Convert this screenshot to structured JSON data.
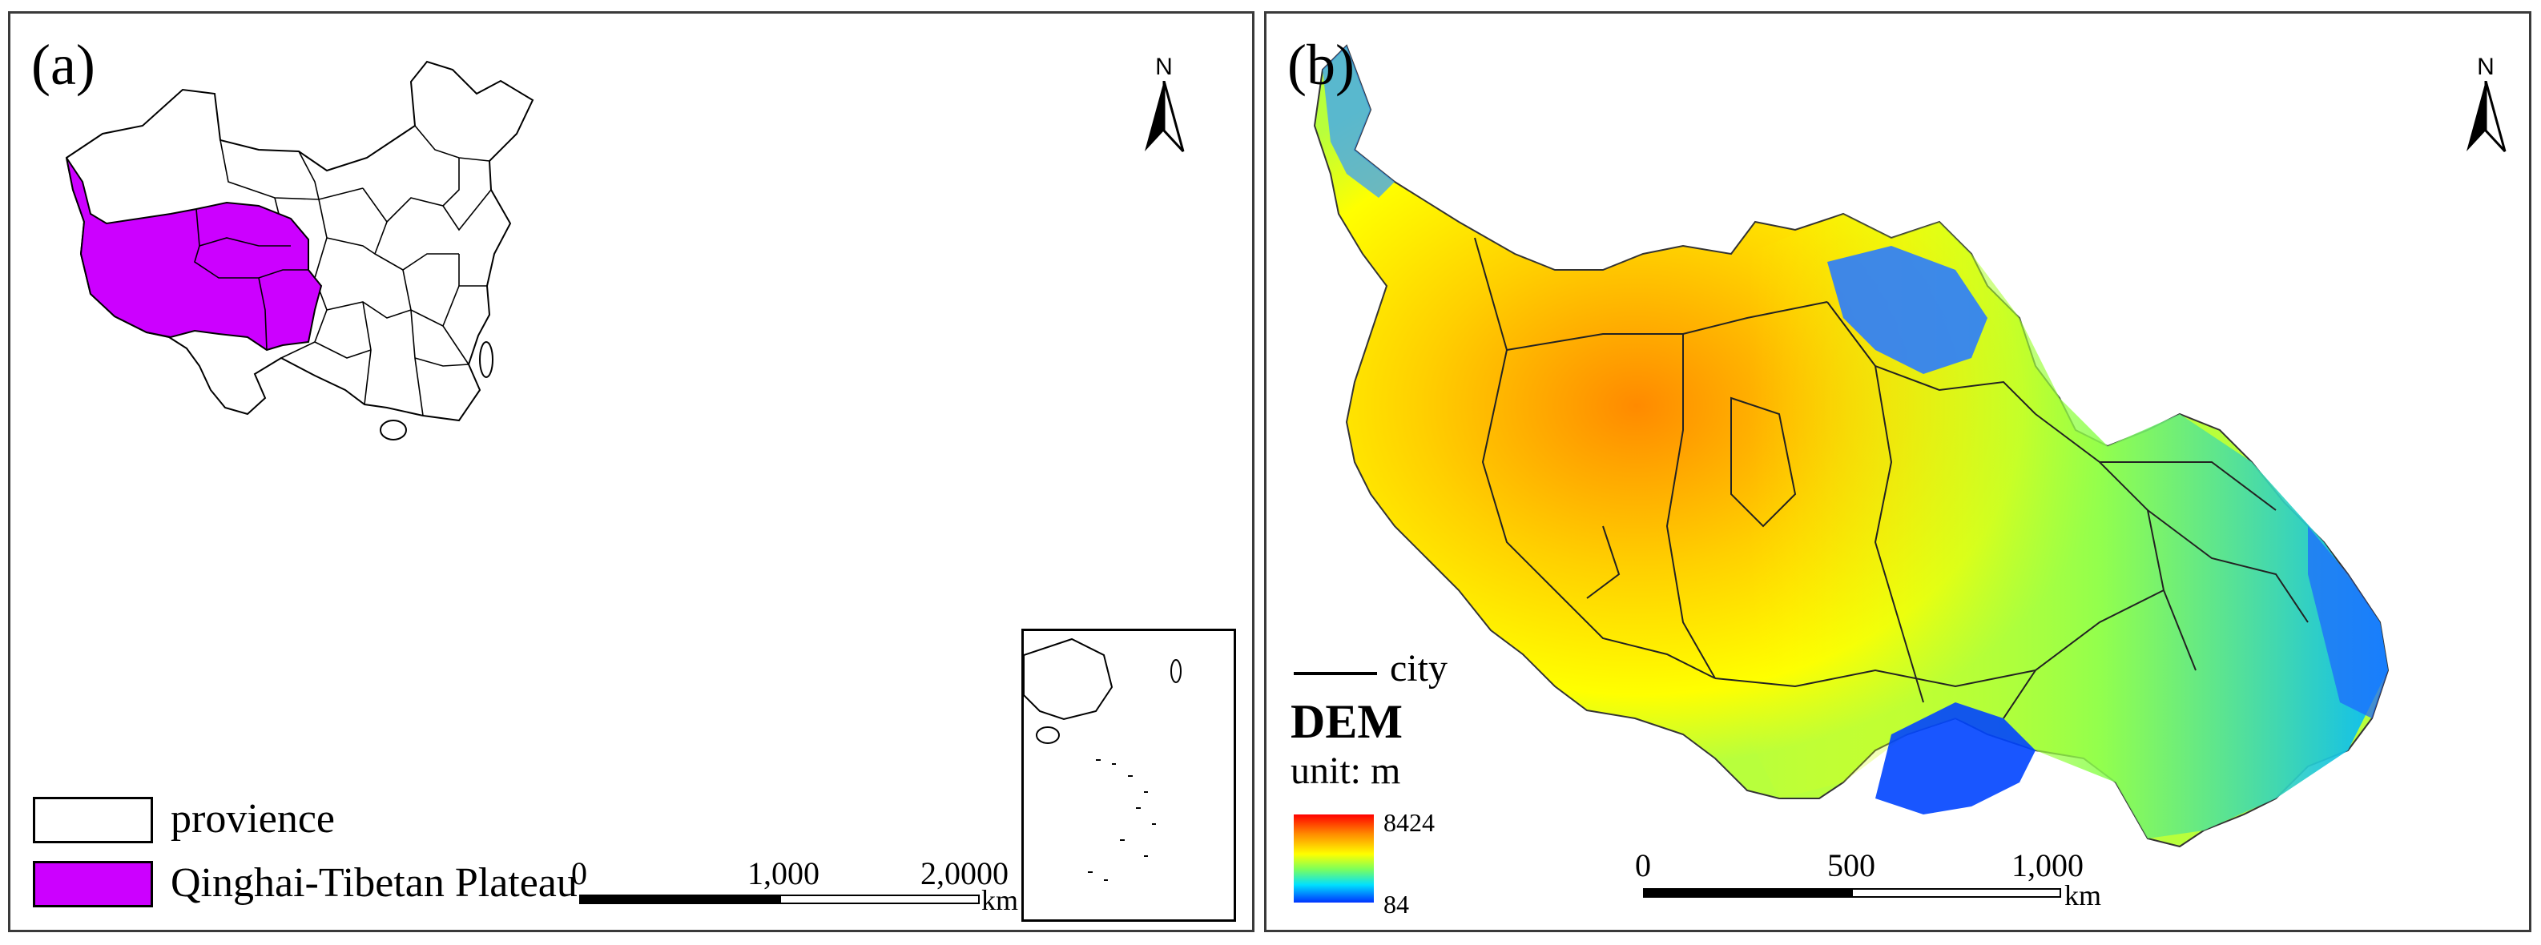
{
  "panel_a": {
    "label": "(a)",
    "north": "N",
    "legend": [
      {
        "label": "provience",
        "color": "#ffffff"
      },
      {
        "label": "Qinghai-Tibetan Plateau",
        "color": "#cc00ff"
      }
    ],
    "scale": {
      "ticks": [
        "0",
        "1,000",
        "2,0000"
      ],
      "unit": "km"
    }
  },
  "panel_b": {
    "label": "(b)",
    "north": "N",
    "city_label": "city",
    "dem_title": "DEM",
    "dem_unit": "unit: m",
    "dem_max": "8424",
    "dem_min": "84",
    "ramp_colors": [
      "#ff0000",
      "#ff8a00",
      "#ffff00",
      "#7dff5a",
      "#00e0ff",
      "#0033ff"
    ],
    "scale": {
      "ticks": [
        "0",
        "500",
        "1,000"
      ],
      "unit": "km"
    }
  }
}
